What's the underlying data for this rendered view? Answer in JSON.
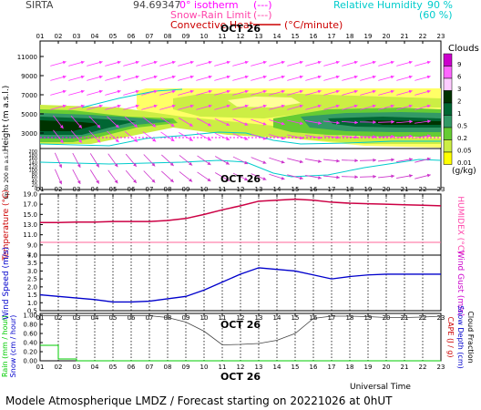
{
  "header": {
    "station": "SIRTA",
    "coords": "94.69347",
    "legend_isotherm": "0° isotherm",
    "legend_isotherm_key": "(---)",
    "legend_snow": "Snow-Rain Limit",
    "legend_snow_key": "(---)",
    "legend_convective": "Convective Heat",
    "legend_convective_unit": "(°C/minute)",
    "legend_rh": "Relative Humidity",
    "rh_90": "90 %",
    "rh_60": "(60 %)"
  },
  "footer": {
    "universal_time": "Universal Time",
    "model_line": "Modele Atmospherique LMDZ / Forecast starting on 20221026 at 0hUT"
  },
  "chart_data": [
    {
      "type": "heatmap",
      "title": "OCT 26",
      "ylabel": "Height (m a.s.l.)",
      "ylabel_low": "Up to 200 m a.s.l.",
      "x": [
        "01",
        "02",
        "03",
        "04",
        "05",
        "06",
        "07",
        "08",
        "09",
        "10",
        "11",
        "12",
        "13",
        "14",
        "15",
        "16",
        "17",
        "18",
        "19",
        "20",
        "21",
        "22",
        "23"
      ],
      "y_ticks_upper": [
        "11000",
        "9000",
        "7000",
        "5000",
        "3000"
      ],
      "y_ticks_lower": [
        "200",
        "180",
        "160",
        "140",
        "120",
        "100",
        "80",
        "60",
        "40",
        "20",
        "0"
      ],
      "colorbar_title": "Clouds",
      "colorbar_unit": "(g/kg)",
      "colorbar_levels": [
        "9",
        "6",
        "3",
        "2",
        "1",
        "0.5",
        "0.2",
        "0.05",
        "0.01"
      ],
      "colorbar_colors": [
        "#cc00cc",
        "#ff66ff",
        "#ffccff",
        "#003300",
        "#006633",
        "#339966",
        "#66cc33",
        "#ccee44",
        "#ffff00"
      ]
    },
    {
      "type": "line",
      "title": "OCT 26",
      "ylabel": "Temperature (°C)",
      "ylabel_right": "HUMIDEX (°C)",
      "x": [
        "01",
        "02",
        "03",
        "04",
        "05",
        "06",
        "07",
        "08",
        "09",
        "10",
        "11",
        "12",
        "13",
        "14",
        "15",
        "16",
        "17",
        "18",
        "19",
        "20",
        "21",
        "22",
        "23"
      ],
      "y_ticks": [
        "19.0",
        "17.0",
        "15.0",
        "13.0",
        "11.0",
        "9.0",
        "7.0"
      ],
      "ylim": [
        7,
        19
      ],
      "series": [
        {
          "values": [
            13.4,
            13.4,
            13.5,
            13.5,
            13.6,
            13.6,
            13.6,
            13.8,
            14.2,
            15.0,
            15.9,
            16.7,
            17.6,
            17.8,
            18.0,
            17.8,
            17.4,
            17.2,
            17.1,
            17.0,
            16.9,
            16.8,
            16.7
          ]
        }
      ],
      "reference_value": 9.5,
      "colors": {
        "temp": "#cc0044",
        "ref": "#ff6699"
      }
    },
    {
      "type": "line",
      "ylabel": "Wind Speed (m/s)",
      "ylabel_right": "Wind Gust (m/s)",
      "x": [
        "01",
        "02",
        "03",
        "04",
        "05",
        "06",
        "07",
        "08",
        "09",
        "10",
        "11",
        "12",
        "13",
        "14",
        "15",
        "16",
        "17",
        "18",
        "19",
        "20",
        "21",
        "22",
        "23"
      ],
      "y_ticks": [
        "4.0",
        "3.5",
        "3.0",
        "2.5",
        "2.0",
        "1.5",
        "1.0",
        "0.5"
      ],
      "ylim": [
        0.5,
        4.0
      ],
      "series": [
        {
          "values": [
            1.5,
            1.4,
            1.3,
            1.2,
            1.05,
            1.05,
            1.1,
            1.25,
            1.4,
            1.8,
            2.3,
            2.8,
            3.2,
            3.1,
            3.0,
            2.75,
            2.5,
            2.65,
            2.75,
            2.8,
            2.8,
            2.8,
            2.8
          ]
        }
      ],
      "colors": {
        "wind": "#0000cc"
      }
    },
    {
      "type": "line",
      "title": "OCT 26",
      "ylabel": "Rain (mm / hour)",
      "ylabel_2": "Snow (cm / hour)",
      "ylabel_right": "CAPE (J / g)",
      "ylabel_right_2": "Snow Depth (cm)",
      "ylabel_right_3": "Cloud Fraction",
      "x": [
        "01",
        "02",
        "03",
        "04",
        "05",
        "06",
        "07",
        "08",
        "09",
        "10",
        "11",
        "12",
        "13",
        "14",
        "15",
        "16",
        "17",
        "18",
        "19",
        "20",
        "21",
        "22",
        "23"
      ],
      "y_ticks": [
        "1.00",
        "0.80",
        "0.60",
        "0.40",
        "0.20",
        "0.00"
      ],
      "ylim": [
        0,
        1.0
      ],
      "series": [
        {
          "values": [
            0.34,
            0.04,
            0,
            0,
            0,
            0,
            0,
            0,
            0,
            0,
            0,
            0,
            0,
            0,
            0,
            0,
            0,
            0,
            0,
            0,
            0,
            0,
            0
          ]
        },
        {
          "values": [
            0.99,
            0.99,
            0.99,
            0.99,
            0.99,
            0.99,
            0.99,
            0.95,
            0.85,
            0.65,
            0.35,
            0.36,
            0.38,
            0.45,
            0.6,
            0.93,
            0.98,
            0.98,
            0.97,
            0.95,
            0.95,
            0.96,
            0.98
          ]
        }
      ],
      "colors": {
        "rain": "#00cc00",
        "cloudfrac": "#444444"
      }
    }
  ]
}
